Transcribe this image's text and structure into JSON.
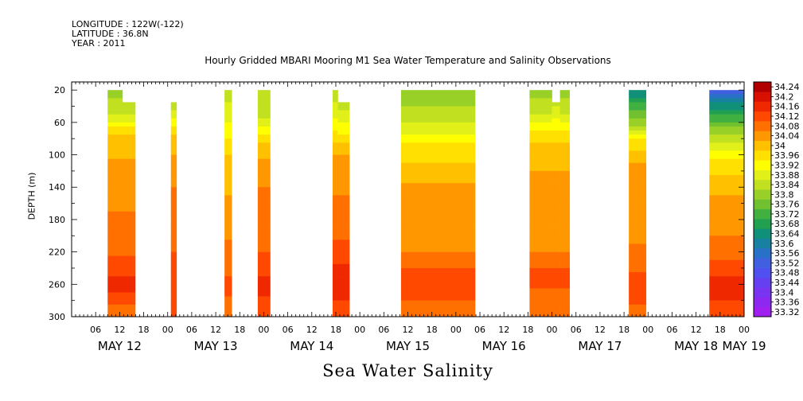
{
  "header": {
    "longitude": "LONGITUDE : 122W(-122)",
    "latitude": "LATITUDE : 36.8N",
    "year": "YEAR : 2011"
  },
  "chart_data": {
    "type": "heatmap",
    "title": "Hourly Gridded MBARI Mooring M1 Sea Water Temperature and Salinity Observations",
    "xlabel": "Sea Water Salinity",
    "ylabel": "DEPTH (m)",
    "xlim_hours": [
      0,
      168
    ],
    "ylim": [
      300,
      10
    ],
    "y_ticks": [
      20,
      60,
      100,
      140,
      180,
      220,
      260,
      300
    ],
    "x_hour_ticks": [
      {
        "t": 6,
        "label": "06"
      },
      {
        "t": 12,
        "label": "12"
      },
      {
        "t": 18,
        "label": "18"
      },
      {
        "t": 24,
        "label": "00"
      },
      {
        "t": 30,
        "label": "06"
      },
      {
        "t": 36,
        "label": "12"
      },
      {
        "t": 42,
        "label": "18"
      },
      {
        "t": 48,
        "label": "00"
      },
      {
        "t": 54,
        "label": "06"
      },
      {
        "t": 60,
        "label": "12"
      },
      {
        "t": 66,
        "label": "18"
      },
      {
        "t": 72,
        "label": "00"
      },
      {
        "t": 78,
        "label": "06"
      },
      {
        "t": 84,
        "label": "12"
      },
      {
        "t": 90,
        "label": "18"
      },
      {
        "t": 96,
        "label": "00"
      },
      {
        "t": 102,
        "label": "06"
      },
      {
        "t": 108,
        "label": "12"
      },
      {
        "t": 114,
        "label": "18"
      },
      {
        "t": 120,
        "label": "00"
      },
      {
        "t": 126,
        "label": "06"
      },
      {
        "t": 132,
        "label": "12"
      },
      {
        "t": 138,
        "label": "18"
      },
      {
        "t": 144,
        "label": "00"
      },
      {
        "t": 150,
        "label": "06"
      },
      {
        "t": 156,
        "label": "12"
      },
      {
        "t": 162,
        "label": "18"
      },
      {
        "t": 168,
        "label": "00"
      }
    ],
    "x_date_labels": [
      {
        "t": 12,
        "label": "MAY 12"
      },
      {
        "t": 36,
        "label": "MAY 13"
      },
      {
        "t": 60,
        "label": "MAY 14"
      },
      {
        "t": 84,
        "label": "MAY 15"
      },
      {
        "t": 108,
        "label": "MAY 16"
      },
      {
        "t": 132,
        "label": "MAY 17"
      },
      {
        "t": 156,
        "label": "MAY 18"
      },
      {
        "t": 168,
        "label": "MAY 19"
      }
    ],
    "colorbar": {
      "levels": [
        33.32,
        33.36,
        33.4,
        33.44,
        33.48,
        33.52,
        33.56,
        33.6,
        33.64,
        33.68,
        33.72,
        33.76,
        33.8,
        33.84,
        33.88,
        33.92,
        33.96,
        34,
        34.04,
        34.08,
        34.12,
        34.16,
        34.2,
        34.24
      ],
      "labels": [
        "33.32",
        "33.36",
        "33.4",
        "33.44",
        "33.48",
        "33.52",
        "33.56",
        "33.6",
        "33.64",
        "33.68",
        "33.72",
        "33.76",
        "33.8",
        "33.84",
        "33.88",
        "33.92",
        "33.96",
        "34",
        "34.04",
        "34.08",
        "34.12",
        "34.16",
        "34.2",
        "34.24"
      ],
      "colors": [
        "#a020f0",
        "#8c28f0",
        "#7834f0",
        "#6440f0",
        "#5050f0",
        "#4060e0",
        "#2870c8",
        "#1880a0",
        "#109078",
        "#20a050",
        "#40b040",
        "#70c030",
        "#98d028",
        "#c0e020",
        "#e0f018",
        "#ffff00",
        "#ffe000",
        "#ffc000",
        "#ff9800",
        "#ff7000",
        "#ff4800",
        "#f02800",
        "#d81000",
        "#b00000"
      ]
    },
    "segments": [
      {
        "start": 9,
        "end": 12.7,
        "profile": [
          [
            20,
            33.82
          ],
          [
            45,
            33.86
          ],
          [
            80,
            34.02
          ],
          [
            140,
            34.07
          ],
          [
            200,
            34.09
          ],
          [
            240,
            34.14
          ],
          [
            260,
            34.18
          ],
          [
            290,
            34.1
          ]
        ]
      },
      {
        "start": 12.7,
        "end": 15.9,
        "top": 35,
        "profile": [
          [
            20,
            33.82
          ],
          [
            45,
            33.86
          ],
          [
            80,
            34.02
          ],
          [
            140,
            34.07
          ],
          [
            200,
            34.09
          ],
          [
            240,
            34.14
          ],
          [
            260,
            34.18
          ],
          [
            290,
            34.1
          ]
        ]
      },
      {
        "start": 24.8,
        "end": 26.2,
        "top": 35,
        "profile": [
          [
            35,
            33.84
          ],
          [
            80,
            34.02
          ],
          [
            140,
            34.08
          ],
          [
            200,
            34.1
          ],
          [
            230,
            34.13
          ],
          [
            260,
            34.16
          ],
          [
            300,
            34.13
          ]
        ]
      },
      {
        "start": 38.2,
        "end": 40.0,
        "profile": [
          [
            20,
            33.86
          ],
          [
            60,
            33.92
          ],
          [
            100,
            34.0
          ],
          [
            160,
            34.05
          ],
          [
            220,
            34.09
          ],
          [
            260,
            34.13
          ],
          [
            300,
            34.1
          ]
        ]
      },
      {
        "start": 46.5,
        "end": 49.6,
        "profile": [
          [
            20,
            33.84
          ],
          [
            50,
            33.86
          ],
          [
            90,
            34.02
          ],
          [
            140,
            34.08
          ],
          [
            200,
            34.1
          ],
          [
            240,
            34.14
          ],
          [
            260,
            34.18
          ],
          [
            300,
            34.12
          ]
        ]
      },
      {
        "start": 65.2,
        "end": 66.5,
        "profile": [
          [
            20,
            33.86
          ],
          [
            50,
            33.9
          ],
          [
            100,
            34.04
          ],
          [
            160,
            34.09
          ],
          [
            220,
            34.13
          ],
          [
            250,
            34.2
          ],
          [
            300,
            34.13
          ]
        ]
      },
      {
        "start": 66.5,
        "end": 69.4,
        "top": 35,
        "profile": [
          [
            35,
            33.86
          ],
          [
            60,
            33.92
          ],
          [
            100,
            34.04
          ],
          [
            160,
            34.09
          ],
          [
            220,
            34.13
          ],
          [
            250,
            34.2
          ],
          [
            300,
            34.13
          ]
        ]
      },
      {
        "start": 82.3,
        "end": 100.8,
        "profile": [
          [
            20,
            33.8
          ],
          [
            40,
            33.84
          ],
          [
            60,
            33.88
          ],
          [
            90,
            33.97
          ],
          [
            140,
            34.05
          ],
          [
            180,
            34.05
          ],
          [
            220,
            34.08
          ],
          [
            240,
            34.12
          ],
          [
            255,
            34.16
          ],
          [
            300,
            34.08
          ]
        ]
      },
      {
        "start": 114.4,
        "end": 120.0,
        "profile": [
          [
            20,
            33.82
          ],
          [
            45,
            33.86
          ],
          [
            70,
            33.96
          ],
          [
            100,
            34.03
          ],
          [
            160,
            34.06
          ],
          [
            220,
            34.08
          ],
          [
            250,
            34.14
          ],
          [
            300,
            34.08
          ]
        ]
      },
      {
        "start": 120.0,
        "end": 122.0,
        "top": 35,
        "profile": [
          [
            35,
            33.86
          ],
          [
            70,
            33.96
          ],
          [
            100,
            34.03
          ],
          [
            160,
            34.06
          ],
          [
            220,
            34.08
          ],
          [
            250,
            34.14
          ],
          [
            300,
            34.08
          ]
        ]
      },
      {
        "start": 122.0,
        "end": 124.4,
        "profile": [
          [
            20,
            33.82
          ],
          [
            45,
            33.86
          ],
          [
            70,
            33.96
          ],
          [
            100,
            34.03
          ],
          [
            160,
            34.06
          ],
          [
            220,
            34.08
          ],
          [
            250,
            34.14
          ],
          [
            300,
            34.08
          ]
        ]
      },
      {
        "start": 139.2,
        "end": 143.5,
        "profile": [
          [
            20,
            33.64
          ],
          [
            40,
            33.74
          ],
          [
            60,
            33.82
          ],
          [
            80,
            33.96
          ],
          [
            110,
            34.04
          ],
          [
            200,
            34.07
          ],
          [
            240,
            34.11
          ],
          [
            260,
            34.15
          ],
          [
            300,
            34.1
          ]
        ]
      },
      {
        "start": 159.3,
        "end": 168.0,
        "profile": [
          [
            20,
            33.52
          ],
          [
            35,
            33.64
          ],
          [
            55,
            33.74
          ],
          [
            80,
            33.86
          ],
          [
            110,
            33.97
          ],
          [
            150,
            34.04
          ],
          [
            200,
            34.08
          ],
          [
            230,
            34.12
          ],
          [
            260,
            34.18
          ],
          [
            300,
            34.14
          ]
        ]
      }
    ]
  }
}
